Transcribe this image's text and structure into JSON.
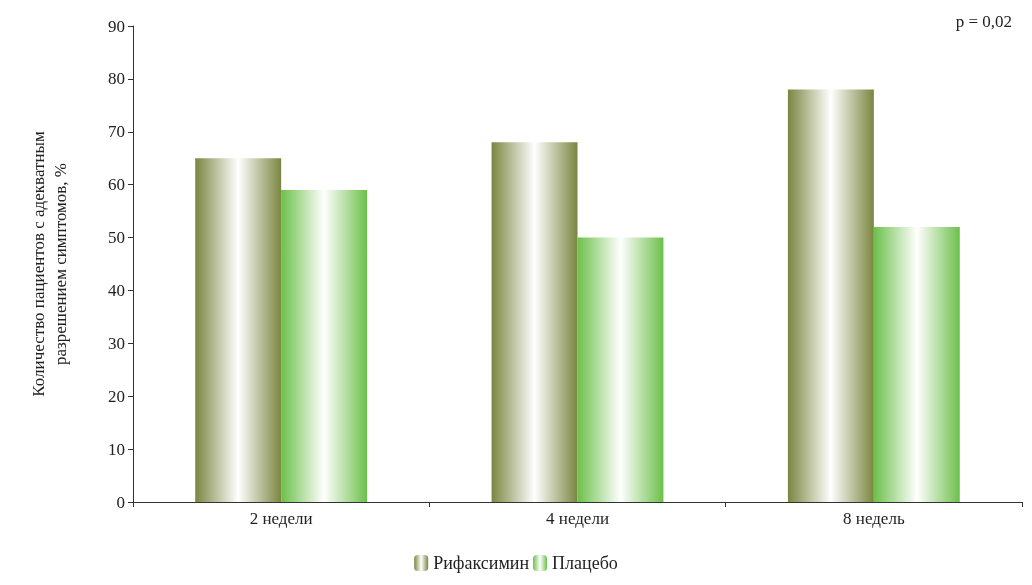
{
  "chart_data": {
    "type": "bar",
    "ylabel": "Количество пациентов с адекватным\nразрешением симптомов, %",
    "categories": [
      "2 недели",
      "4 недели",
      "8 недель"
    ],
    "series": [
      {
        "name": "Рифаксимин",
        "color": "#7a8640",
        "values": [
          65,
          68,
          78
        ]
      },
      {
        "name": "Плацебо",
        "color": "#6cc04a",
        "values": [
          59,
          50,
          52
        ]
      }
    ],
    "ylim": [
      0,
      90
    ],
    "yticks": [
      0,
      10,
      20,
      30,
      40,
      50,
      60,
      70,
      80,
      90
    ],
    "grid": false,
    "legend": "bottom",
    "annotations": [
      "p = 0,02"
    ]
  }
}
